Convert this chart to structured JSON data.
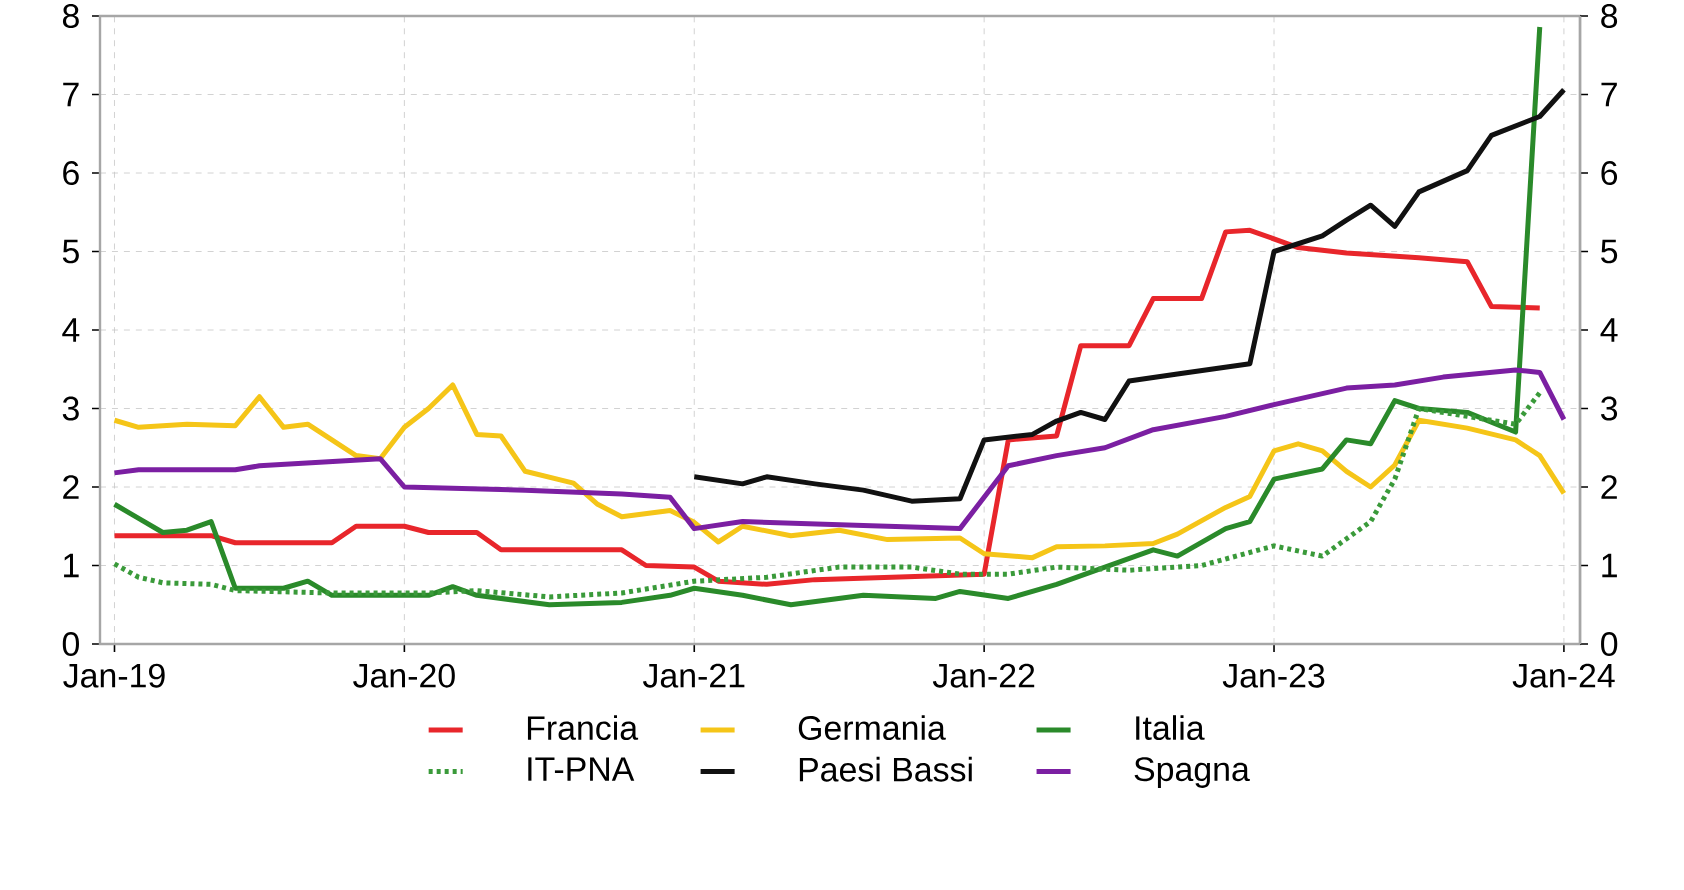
{
  "chart_data": {
    "type": "line",
    "xlim": [
      "2018-12-13",
      "2024-01-21"
    ],
    "xticks": [
      {
        "value": "2019-01",
        "label": "Jan-19"
      },
      {
        "value": "2020-01",
        "label": "Jan-20"
      },
      {
        "value": "2021-01",
        "label": "Jan-21"
      },
      {
        "value": "2022-01",
        "label": "Jan-22"
      },
      {
        "value": "2023-01",
        "label": "Jan-23"
      },
      {
        "value": "2024-01",
        "label": "Jan-24"
      }
    ],
    "ylim": [
      0,
      8
    ],
    "yticks": [
      0,
      1,
      2,
      3,
      4,
      5,
      6,
      7,
      8
    ],
    "y2lim": [
      0,
      8
    ],
    "y2ticks": [
      0,
      1,
      2,
      3,
      4,
      5,
      6,
      7,
      8
    ],
    "grid": true,
    "legend": "bottom",
    "marker": "none",
    "series": [
      {
        "name": "Francia",
        "color": "#e8262b",
        "x": [
          "2019-01",
          "2019-05",
          "2019-06",
          "2019-10",
          "2019-11",
          "2020-01",
          "2020-02",
          "2020-04",
          "2020-05",
          "2020-10",
          "2020-11",
          "2021-01",
          "2021-02",
          "2021-04",
          "2021-06",
          "2022-01",
          "2022-02",
          "2022-04",
          "2022-05",
          "2022-07",
          "2022-08",
          "2022-10",
          "2022-11",
          "2022-12",
          "2023-02",
          "2023-04",
          "2023-07",
          "2023-09",
          "2023-10",
          "2023-12"
        ],
        "values": [
          1.38,
          1.38,
          1.29,
          1.29,
          1.5,
          1.5,
          1.42,
          1.42,
          1.2,
          1.2,
          1.0,
          0.98,
          0.8,
          0.76,
          0.82,
          0.89,
          2.6,
          2.65,
          3.8,
          3.8,
          4.4,
          4.4,
          5.25,
          5.27,
          5.05,
          4.98,
          4.92,
          4.87,
          4.3,
          4.28
        ]
      },
      {
        "name": "Germania",
        "color": "#f5c518",
        "x": [
          "2019-01",
          "2019-02",
          "2019-04",
          "2019-06",
          "2019-07",
          "2019-08",
          "2019-09",
          "2019-11",
          "2019-12",
          "2020-01",
          "2020-02",
          "2020-03",
          "2020-04",
          "2020-05",
          "2020-06",
          "2020-08",
          "2020-09",
          "2020-10",
          "2020-12",
          "2021-01",
          "2021-02",
          "2021-03",
          "2021-05",
          "2021-07",
          "2021-09",
          "2021-12",
          "2022-01",
          "2022-03",
          "2022-04",
          "2022-06",
          "2022-08",
          "2022-09",
          "2022-11",
          "2022-12",
          "2023-01",
          "2023-02",
          "2023-03",
          "2023-04",
          "2023-05",
          "2023-06",
          "2023-07",
          "2023-09",
          "2023-11",
          "2023-12",
          "2024-01"
        ],
        "values": [
          2.85,
          2.76,
          2.8,
          2.78,
          3.15,
          2.76,
          2.8,
          2.4,
          2.36,
          2.76,
          3.0,
          3.3,
          2.67,
          2.65,
          2.2,
          2.05,
          1.78,
          1.62,
          1.7,
          1.55,
          1.3,
          1.5,
          1.38,
          1.45,
          1.33,
          1.35,
          1.15,
          1.1,
          1.24,
          1.25,
          1.28,
          1.4,
          1.74,
          1.88,
          2.46,
          2.55,
          2.46,
          2.2,
          2.0,
          2.28,
          2.85,
          2.75,
          2.6,
          2.4,
          1.92
        ]
      },
      {
        "name": "Italia",
        "color": "#2a8a2a",
        "x": [
          "2019-01",
          "2019-02",
          "2019-03",
          "2019-04",
          "2019-05",
          "2019-06",
          "2019-08",
          "2019-09",
          "2019-10",
          "2020-02",
          "2020-03",
          "2020-04",
          "2020-07",
          "2020-10",
          "2020-12",
          "2021-01",
          "2021-03",
          "2021-05",
          "2021-08",
          "2021-11",
          "2021-12",
          "2022-02",
          "2022-04",
          "2022-06",
          "2022-08",
          "2022-09",
          "2022-11",
          "2022-12",
          "2023-01",
          "2023-03",
          "2023-04",
          "2023-05",
          "2023-06",
          "2023-07",
          "2023-09",
          "2023-11",
          "2023-12"
        ],
        "values": [
          1.78,
          1.6,
          1.42,
          1.45,
          1.56,
          0.71,
          0.71,
          0.8,
          0.62,
          0.62,
          0.73,
          0.62,
          0.5,
          0.53,
          0.62,
          0.71,
          0.62,
          0.5,
          0.62,
          0.58,
          0.67,
          0.58,
          0.76,
          0.98,
          1.2,
          1.12,
          1.47,
          1.56,
          2.1,
          2.23,
          2.6,
          2.55,
          3.1,
          3.0,
          2.95,
          2.7,
          7.86
        ]
      },
      {
        "name": "IT-PNA",
        "color": "#3a9a3a",
        "line_style": "dotted",
        "x": [
          "2019-01",
          "2019-02",
          "2019-03",
          "2019-05",
          "2019-06",
          "2019-10",
          "2020-02",
          "2020-04",
          "2020-07",
          "2020-10",
          "2021-01",
          "2021-04",
          "2021-07",
          "2021-10",
          "2021-12",
          "2022-02",
          "2022-04",
          "2022-07",
          "2022-10",
          "2023-01",
          "2023-03",
          "2023-05",
          "2023-06",
          "2023-07",
          "2023-09",
          "2023-11",
          "2023-12"
        ],
        "values": [
          1.02,
          0.85,
          0.78,
          0.76,
          0.68,
          0.65,
          0.65,
          0.68,
          0.6,
          0.65,
          0.8,
          0.85,
          0.98,
          0.98,
          0.89,
          0.89,
          0.98,
          0.94,
          1.0,
          1.25,
          1.12,
          1.56,
          2.1,
          3.0,
          2.9,
          2.8,
          3.2
        ]
      },
      {
        "name": "Paesi Bassi",
        "color": "#111111",
        "x": [
          "2021-01",
          "2021-03",
          "2021-04",
          "2021-06",
          "2021-08",
          "2021-10",
          "2021-12",
          "2022-01",
          "2022-03",
          "2022-04",
          "2022-05",
          "2022-06",
          "2022-07",
          "2022-09",
          "2022-12",
          "2023-01",
          "2023-03",
          "2023-04",
          "2023-05",
          "2023-06",
          "2023-07",
          "2023-09",
          "2023-10",
          "2023-12",
          "2024-01"
        ],
        "values": [
          2.13,
          2.04,
          2.13,
          2.04,
          1.96,
          1.82,
          1.85,
          2.6,
          2.67,
          2.84,
          2.95,
          2.86,
          3.35,
          3.44,
          3.57,
          5.0,
          5.2,
          5.4,
          5.59,
          5.32,
          5.76,
          6.03,
          6.48,
          6.72,
          7.06
        ]
      },
      {
        "name": "Spagna",
        "color": "#7b1fa2",
        "x": [
          "2019-01",
          "2019-02",
          "2019-06",
          "2019-07",
          "2019-12",
          "2020-01",
          "2020-06",
          "2020-10",
          "2020-12",
          "2021-01",
          "2021-03",
          "2021-08",
          "2021-12",
          "2022-01",
          "2022-02",
          "2022-04",
          "2022-06",
          "2022-08",
          "2022-11",
          "2023-01",
          "2023-04",
          "2023-06",
          "2023-08",
          "2023-11",
          "2023-12",
          "2024-01"
        ],
        "values": [
          2.18,
          2.22,
          2.22,
          2.27,
          2.36,
          2.0,
          1.96,
          1.91,
          1.87,
          1.47,
          1.56,
          1.51,
          1.47,
          1.87,
          2.27,
          2.4,
          2.5,
          2.73,
          2.9,
          3.05,
          3.26,
          3.3,
          3.4,
          3.49,
          3.46,
          2.86
        ]
      }
    ]
  }
}
